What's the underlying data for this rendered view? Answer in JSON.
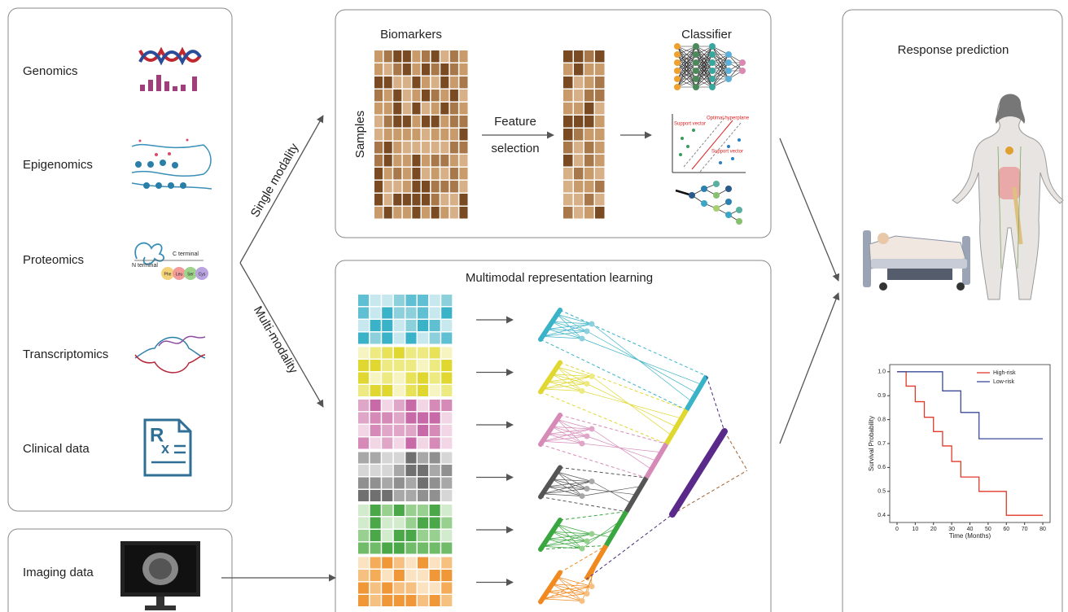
{
  "inputs": {
    "omics": [
      "Genomics",
      "Epigenomics",
      "Proteomics",
      "Transcriptomics",
      "Clinical data"
    ],
    "imaging": "Imaging data"
  },
  "branches": [
    "Single modality",
    "Multi-modality"
  ],
  "single": {
    "biomarkers": "Biomarkers",
    "samples": "Samples",
    "feature_selection": [
      "Feature",
      "selection"
    ],
    "classifier": "Classifier",
    "svm_labels": [
      "Support vector",
      "Optimal hyperplane",
      "Support vector"
    ]
  },
  "proteomics_icon": {
    "c_terminal": "C terminal",
    "n_terminal": "N terminal",
    "residues": [
      "Phe",
      "Leu",
      "Ser",
      "Cys"
    ]
  },
  "clinical_icon": [
    "R",
    "x"
  ],
  "multimodal": {
    "title": "Multimodal representation learning"
  },
  "output": {
    "title": "Response prediction"
  },
  "chart_data": {
    "type": "line",
    "step": true,
    "xlabel": "Time (Months)",
    "ylabel": "Survival Probability",
    "series": [
      {
        "name": "High-risk",
        "color": "#e03a2b",
        "x": [
          0,
          5,
          10,
          15,
          20,
          25,
          30,
          35,
          45,
          60,
          80
        ],
        "values": [
          1.0,
          0.94,
          0.875,
          0.81,
          0.75,
          0.69,
          0.625,
          0.56,
          0.5,
          0.4,
          0.4
        ]
      },
      {
        "name": "Low-risk",
        "color": "#3b4b9a",
        "x": [
          0,
          25,
          35,
          45,
          80
        ],
        "values": [
          1.0,
          0.92,
          0.83,
          0.72,
          0.72
        ]
      }
    ],
    "xlim": [
      -4,
      84
    ],
    "ylim": [
      0.37,
      1.03
    ],
    "xticks": [
      0,
      10,
      20,
      30,
      40,
      50,
      60,
      70,
      80
    ],
    "yticks": [
      {
        "value": 1.0,
        "label": "1.0"
      },
      0.9,
      0.8,
      0.7,
      0.6,
      0.5,
      0.4
    ],
    "legend": "upper right"
  }
}
